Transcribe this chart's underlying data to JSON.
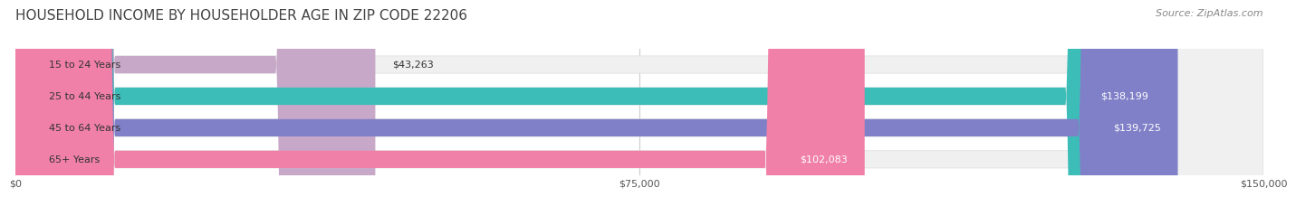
{
  "title": "HOUSEHOLD INCOME BY HOUSEHOLDER AGE IN ZIP CODE 22206",
  "source": "Source: ZipAtlas.com",
  "categories": [
    "15 to 24 Years",
    "25 to 44 Years",
    "45 to 64 Years",
    "65+ Years"
  ],
  "values": [
    43263,
    138199,
    139725,
    102083
  ],
  "bar_colors": [
    "#c8a8c8",
    "#3dbdb8",
    "#8080c8",
    "#f080a8"
  ],
  "bar_bg_color": "#f0f0f0",
  "x_max": 150000,
  "x_ticks": [
    0,
    75000,
    150000
  ],
  "x_tick_labels": [
    "$0",
    "$75,000",
    "$150,000"
  ],
  "value_labels": [
    "$43,263",
    "$138,199",
    "$139,725",
    "$102,083"
  ],
  "background_color": "#ffffff",
  "title_fontsize": 11,
  "source_fontsize": 8,
  "bar_label_fontsize": 8,
  "axis_label_fontsize": 8,
  "category_fontsize": 8
}
